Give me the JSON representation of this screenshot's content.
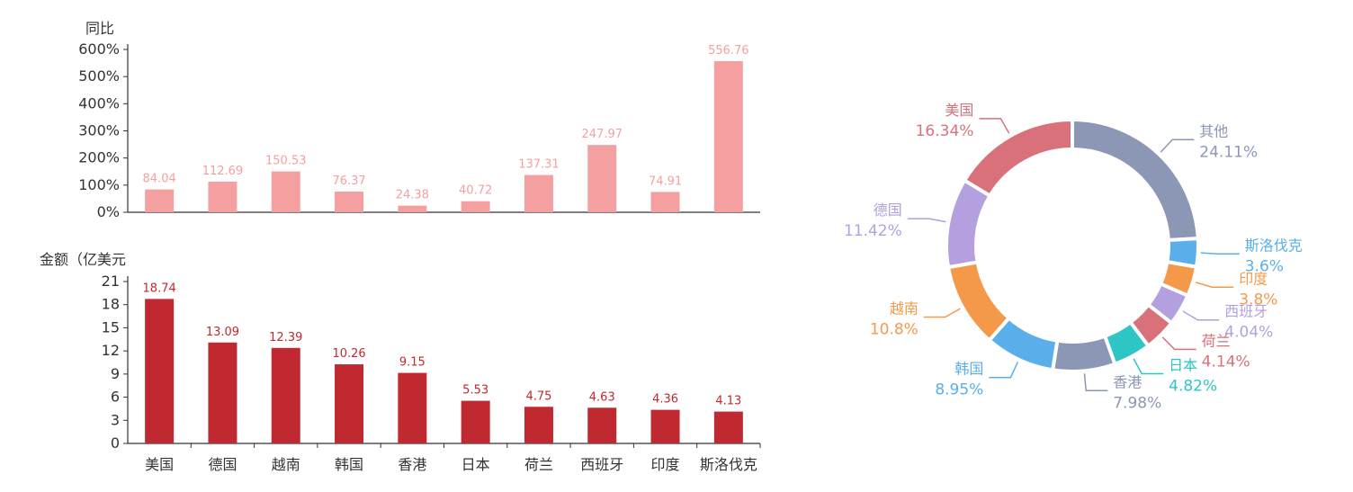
{
  "chart_data": [
    {
      "type": "bar",
      "ylabel": "同比",
      "categories": [
        "美国",
        "德国",
        "越南",
        "韩国",
        "香港",
        "日本",
        "荷兰",
        "西班牙",
        "印度",
        "斯洛伐克"
      ],
      "values": [
        84.04,
        112.69,
        150.53,
        76.37,
        24.38,
        40.72,
        137.31,
        247.97,
        74.91,
        556.76
      ],
      "value_labels": [
        "84.04",
        "112.69",
        "150.53",
        "76.37",
        "24.38",
        "40.72",
        "137.31",
        "247.97",
        "74.91",
        "556.76"
      ],
      "ylim": [
        0,
        600
      ],
      "yticks": [
        "0%",
        "100%",
        "200%",
        "300%",
        "400%",
        "500%",
        "600%"
      ],
      "yticks_values": [
        0,
        100,
        200,
        300,
        400,
        500,
        600
      ],
      "color": "#f4a0a0"
    },
    {
      "type": "bar",
      "ylabel": "金额（亿美元",
      "categories": [
        "美国",
        "德国",
        "越南",
        "韩国",
        "香港",
        "日本",
        "荷兰",
        "西班牙",
        "印度",
        "斯洛伐克"
      ],
      "values": [
        18.74,
        13.09,
        12.39,
        10.26,
        9.15,
        5.53,
        4.75,
        4.63,
        4.36,
        4.13
      ],
      "value_labels": [
        "18.74",
        "13.09",
        "12.39",
        "10.26",
        "9.15",
        "5.53",
        "4.75",
        "4.63",
        "4.36",
        "4.13"
      ],
      "ylim": [
        0,
        21
      ],
      "yticks": [
        "0",
        "3",
        "6",
        "9",
        "12",
        "15",
        "18",
        "21"
      ],
      "yticks_values": [
        0,
        3,
        6,
        9,
        12,
        15,
        18,
        21
      ],
      "color": "#c0292f"
    },
    {
      "type": "pie",
      "donut": true,
      "slices": [
        {
          "name": "其他",
          "value": 24.11,
          "label": "24.11%",
          "color": "#8b97b4"
        },
        {
          "name": "斯洛伐克",
          "value": 3.6,
          "label": "3.6%",
          "color": "#5aafeb"
        },
        {
          "name": "印度",
          "value": 3.8,
          "label": "3.8%",
          "color": "#f4994a"
        },
        {
          "name": "西班牙",
          "value": 4.04,
          "label": "4.04%",
          "color": "#b49fdf"
        },
        {
          "name": "荷兰",
          "value": 4.14,
          "label": "4.14%",
          "color": "#d9717a"
        },
        {
          "name": "日本",
          "value": 4.82,
          "label": "4.82%",
          "color": "#2ec5c5"
        },
        {
          "name": "香港",
          "value": 7.98,
          "label": "7.98%",
          "color": "#8b97b4"
        },
        {
          "name": "韩国",
          "value": 8.95,
          "label": "8.95%",
          "color": "#5aafeb"
        },
        {
          "name": "越南",
          "value": 10.8,
          "label": "10.8%",
          "color": "#f4994a"
        },
        {
          "name": "德国",
          "value": 11.42,
          "label": "11.42%",
          "color": "#b49fdf"
        },
        {
          "name": "美国",
          "value": 16.34,
          "label": "16.34%",
          "color": "#d9717a"
        }
      ]
    }
  ]
}
